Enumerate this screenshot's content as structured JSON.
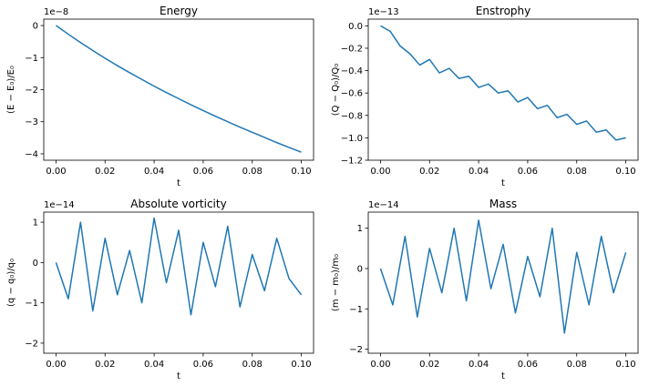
{
  "figure": {
    "background": "#ffffff",
    "line_color": "#1f77b4"
  },
  "chart_data": [
    {
      "type": "line",
      "title": "Energy",
      "xlabel": "t",
      "ylabel": "(E − E₀)/E₀",
      "offset_text": "1e−8",
      "xlim": [
        -0.005,
        0.105
      ],
      "ylim": [
        -4.2,
        0.2
      ],
      "xticks": [
        0.0,
        0.02,
        0.04,
        0.06,
        0.08,
        0.1
      ],
      "xtick_labels": [
        "0.00",
        "0.02",
        "0.04",
        "0.06",
        "0.08",
        "0.10"
      ],
      "yticks": [
        0,
        -1,
        -2,
        -3,
        -4
      ],
      "ytick_labels": [
        "0",
        "−1",
        "−2",
        "−3",
        "−4"
      ],
      "series": [
        {
          "x": [
            0.0,
            0.005,
            0.01,
            0.015,
            0.02,
            0.025,
            0.03,
            0.035,
            0.04,
            0.045,
            0.05,
            0.055,
            0.06,
            0.065,
            0.07,
            0.075,
            0.08,
            0.085,
            0.09,
            0.095,
            0.1
          ],
          "y": [
            0.0,
            -0.27,
            -0.53,
            -0.78,
            -1.02,
            -1.25,
            -1.47,
            -1.68,
            -1.89,
            -2.09,
            -2.28,
            -2.47,
            -2.65,
            -2.83,
            -3.0,
            -3.17,
            -3.33,
            -3.49,
            -3.65,
            -3.8,
            -3.95
          ]
        }
      ]
    },
    {
      "type": "line",
      "title": "Enstrophy",
      "xlabel": "t",
      "ylabel": "(Q − Q₀)/Q₀",
      "offset_text": "1e−13",
      "xlim": [
        -0.005,
        0.105
      ],
      "ylim": [
        -1.2,
        0.06
      ],
      "xticks": [
        0.0,
        0.02,
        0.04,
        0.06,
        0.08,
        0.1
      ],
      "xtick_labels": [
        "0.00",
        "0.02",
        "0.04",
        "0.06",
        "0.08",
        "0.10"
      ],
      "yticks": [
        0.0,
        -0.2,
        -0.4,
        -0.6,
        -0.8,
        -1.0,
        -1.2
      ],
      "ytick_labels": [
        "0.0",
        "−0.2",
        "−0.4",
        "−0.6",
        "−0.8",
        "−1.0",
        "−1.2"
      ],
      "series": [
        {
          "x": [
            0.0,
            0.004,
            0.008,
            0.012,
            0.016,
            0.02,
            0.024,
            0.028,
            0.032,
            0.036,
            0.04,
            0.044,
            0.048,
            0.052,
            0.056,
            0.06,
            0.064,
            0.068,
            0.072,
            0.076,
            0.08,
            0.084,
            0.088,
            0.092,
            0.096,
            0.1
          ],
          "y": [
            0.0,
            -0.05,
            -0.18,
            -0.25,
            -0.35,
            -0.3,
            -0.42,
            -0.38,
            -0.47,
            -0.45,
            -0.55,
            -0.52,
            -0.6,
            -0.58,
            -0.68,
            -0.64,
            -0.74,
            -0.71,
            -0.82,
            -0.79,
            -0.88,
            -0.85,
            -0.95,
            -0.93,
            -1.02,
            -1.0
          ]
        }
      ]
    },
    {
      "type": "line",
      "title": "Absolute vorticity",
      "xlabel": "t",
      "ylabel": "(q − q₀)/q₀",
      "offset_text": "1e−14",
      "xlim": [
        -0.005,
        0.105
      ],
      "ylim": [
        -2.25,
        1.25
      ],
      "xticks": [
        0.0,
        0.02,
        0.04,
        0.06,
        0.08,
        0.1
      ],
      "xtick_labels": [
        "0.00",
        "0.02",
        "0.04",
        "0.06",
        "0.08",
        "0.10"
      ],
      "yticks": [
        1,
        0,
        -1,
        -2
      ],
      "ytick_labels": [
        "1",
        "0",
        "−1",
        "−2"
      ],
      "series": [
        {
          "x": [
            0.0,
            0.005,
            0.01,
            0.015,
            0.02,
            0.025,
            0.03,
            0.035,
            0.04,
            0.045,
            0.05,
            0.055,
            0.06,
            0.065,
            0.07,
            0.075,
            0.08,
            0.085,
            0.09,
            0.095,
            0.1
          ],
          "y": [
            0.0,
            -0.9,
            1.0,
            -1.2,
            0.6,
            -0.8,
            0.3,
            -1.0,
            1.1,
            -0.5,
            0.8,
            -1.3,
            0.5,
            -0.6,
            0.9,
            -1.1,
            0.2,
            -0.7,
            0.6,
            -0.4,
            -0.8
          ]
        }
      ]
    },
    {
      "type": "line",
      "title": "Mass",
      "xlabel": "t",
      "ylabel": "(m − m₀)/m₀",
      "offset_text": "1e−14",
      "xlim": [
        -0.005,
        0.105
      ],
      "ylim": [
        -2.1,
        1.4
      ],
      "xticks": [
        0.0,
        0.02,
        0.04,
        0.06,
        0.08,
        0.1
      ],
      "xtick_labels": [
        "0.00",
        "0.02",
        "0.04",
        "0.06",
        "0.08",
        "0.10"
      ],
      "yticks": [
        1,
        0,
        -1,
        -2
      ],
      "ytick_labels": [
        "1",
        "0",
        "−1",
        "−2"
      ],
      "series": [
        {
          "x": [
            0.0,
            0.005,
            0.01,
            0.015,
            0.02,
            0.025,
            0.03,
            0.035,
            0.04,
            0.045,
            0.05,
            0.055,
            0.06,
            0.065,
            0.07,
            0.075,
            0.08,
            0.085,
            0.09,
            0.095,
            0.1
          ],
          "y": [
            0.0,
            -0.9,
            0.8,
            -1.2,
            0.5,
            -0.6,
            1.0,
            -0.8,
            1.2,
            -0.5,
            0.6,
            -1.1,
            0.3,
            -0.7,
            1.0,
            -1.6,
            0.4,
            -0.9,
            0.8,
            -0.6,
            0.4
          ]
        }
      ]
    }
  ]
}
